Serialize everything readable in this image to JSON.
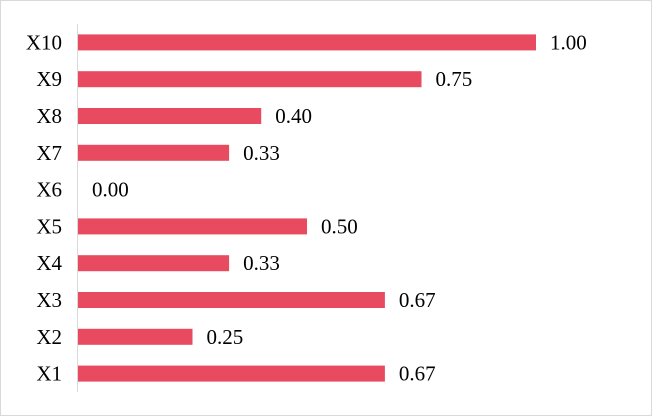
{
  "chart_data": {
    "type": "bar",
    "orientation": "horizontal",
    "categories": [
      "X1",
      "X2",
      "X3",
      "X4",
      "X5",
      "X6",
      "X7",
      "X8",
      "X9",
      "X10"
    ],
    "values": [
      0.67,
      0.25,
      0.67,
      0.33,
      0.5,
      0.0,
      0.33,
      0.4,
      0.75,
      1.0
    ],
    "value_labels": [
      "0.67",
      "0.25",
      "0.67",
      "0.33",
      "0.50",
      "0.00",
      "0.33",
      "0.40",
      "0.75",
      "1.00"
    ],
    "title": "",
    "xlabel": "",
    "ylabel": "",
    "xlim": [
      0,
      1
    ],
    "grid": false,
    "legend": "none",
    "bar_color": "#E84A5F",
    "axis_color": "#d9d9d9"
  }
}
